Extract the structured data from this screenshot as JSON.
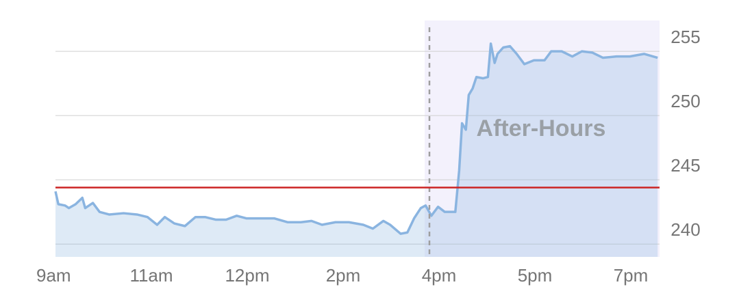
{
  "chart_data": {
    "type": "line",
    "x": [
      0,
      0.03,
      0.1,
      0.14,
      0.21,
      0.28,
      0.31,
      0.39,
      0.46,
      0.56,
      0.71,
      0.85,
      0.96,
      1.06,
      1.14,
      1.24,
      1.35,
      1.46,
      1.56,
      1.67,
      1.78,
      1.89,
      1.99,
      2.14,
      2.28,
      2.42,
      2.56,
      2.67,
      2.78,
      2.92,
      3.06,
      3.21,
      3.31,
      3.42,
      3.49,
      3.6,
      3.67,
      3.74,
      3.81,
      3.86,
      3.92,
      3.99,
      4.06,
      4.17,
      4.21,
      4.24,
      4.28,
      4.31,
      4.35,
      4.39,
      4.46,
      4.51,
      4.54,
      4.58,
      4.61,
      4.67,
      4.74,
      4.81,
      4.89,
      4.99,
      5.1,
      5.17,
      5.28,
      5.39,
      5.49,
      5.6,
      5.71,
      5.85,
      5.99,
      6.14,
      6.28
    ],
    "series": [
      {
        "color": "#8ab4e0",
        "values": [
          244.1,
          243.1,
          243.0,
          242.8,
          243.1,
          243.6,
          242.8,
          243.2,
          242.5,
          242.3,
          242.4,
          242.3,
          242.1,
          241.5,
          242.1,
          241.6,
          241.4,
          242.1,
          242.1,
          241.9,
          241.9,
          242.2,
          242.0,
          242.0,
          242.0,
          241.7,
          241.7,
          241.8,
          241.5,
          241.7,
          241.7,
          241.5,
          241.2,
          241.8,
          241.5,
          240.8,
          240.9,
          242.0,
          242.8,
          243.0,
          242.2,
          242.9,
          242.5,
          242.5,
          245.7,
          249.4,
          248.9,
          251.6,
          252.1,
          253.0,
          252.9,
          253.0,
          255.6,
          254.1,
          254.8,
          255.3,
          255.4,
          254.8,
          254.0,
          254.3,
          254.3,
          255.0,
          255.0,
          254.6,
          255.0,
          254.9,
          254.5,
          254.6,
          254.6,
          254.8,
          254.5
        ]
      }
    ],
    "xlim": [
      0,
      6.3
    ],
    "xticks": [
      {
        "value": 0,
        "label": "9am"
      },
      {
        "value": 1,
        "label": "11am"
      },
      {
        "value": 2,
        "label": "12pm"
      },
      {
        "value": 3,
        "label": "2pm"
      },
      {
        "value": 4,
        "label": "4pm"
      },
      {
        "value": 5,
        "label": "5pm"
      },
      {
        "value": 6,
        "label": "7pm"
      }
    ],
    "ylim": [
      239,
      257.4
    ],
    "yticks": [
      240,
      245,
      250,
      255
    ],
    "grid": true,
    "reference_line": {
      "value": 244.4,
      "color": "#cc2222"
    },
    "after_hours": {
      "start": 3.85,
      "marker": 3.9,
      "label": "After-Hours"
    }
  }
}
